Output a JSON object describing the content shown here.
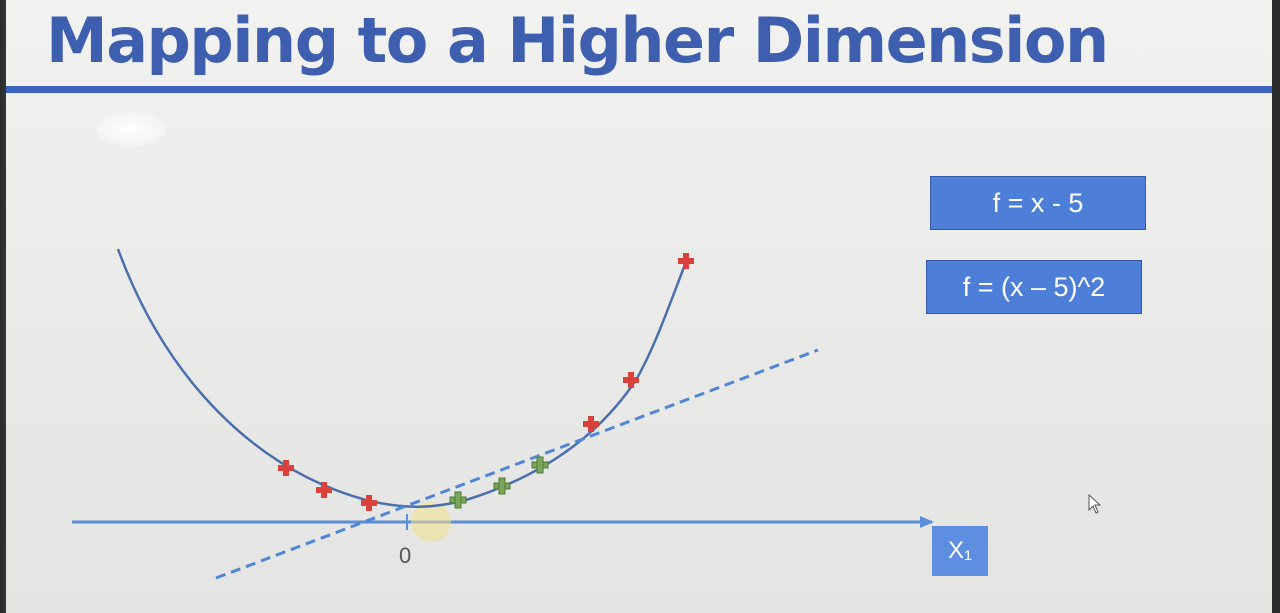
{
  "slide": {
    "title": "Mapping to a Higher Dimension",
    "formulas": [
      "f = x - 5",
      "f = (x – 5)^2"
    ],
    "axis_label": "X₁",
    "origin_label": "0"
  },
  "icons": {
    "cursor": "mouse-pointer-icon",
    "marker": "plus-marker-icon"
  },
  "colors": {
    "title": "#3e5fb0",
    "rule": "#3c63be",
    "box": "#4d7fd9",
    "axis": "#5b8ed8",
    "curve": "#4a6fae",
    "red_marker": "#d9413a",
    "green_marker": "#7aa65a"
  }
}
